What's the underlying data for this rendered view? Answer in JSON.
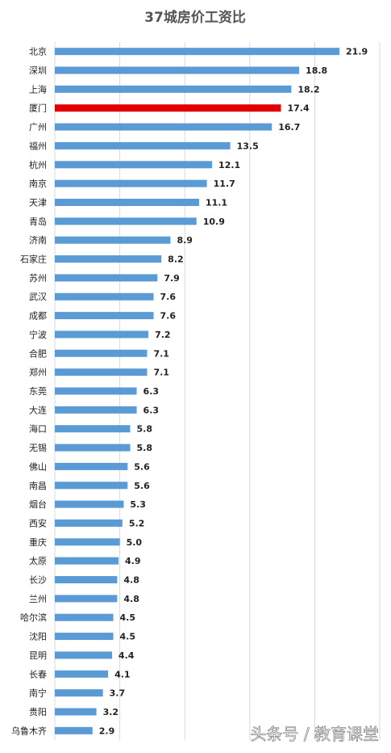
{
  "chart_data": {
    "type": "barh",
    "title": "37城房价工资比",
    "categories": [
      "北京",
      "深圳",
      "上海",
      "厦门",
      "广州",
      "福州",
      "杭州",
      "南京",
      "天津",
      "青岛",
      "济南",
      "石家庄",
      "苏州",
      "武汉",
      "成都",
      "宁波",
      "合肥",
      "郑州",
      "东莞",
      "大连",
      "海口",
      "无锡",
      "佛山",
      "南昌",
      "烟台",
      "西安",
      "重庆",
      "太原",
      "长沙",
      "兰州",
      "哈尔滨",
      "沈阳",
      "昆明",
      "长春",
      "南宁",
      "贵阳",
      "乌鲁木齐"
    ],
    "values": [
      21.9,
      18.8,
      18.2,
      17.4,
      16.7,
      13.5,
      12.1,
      11.7,
      11.1,
      10.9,
      8.9,
      8.2,
      7.9,
      7.6,
      7.6,
      7.2,
      7.1,
      7.1,
      6.3,
      6.3,
      5.8,
      5.8,
      5.6,
      5.6,
      5.3,
      5.2,
      5.0,
      4.9,
      4.8,
      4.8,
      4.5,
      4.5,
      4.4,
      4.1,
      3.7,
      3.2,
      2.9
    ],
    "value_labels": [
      "21.9",
      "18.8",
      "18.2",
      "17.4",
      "16.7",
      "13.5",
      "12.1",
      "11.7",
      "11.1",
      "10.9",
      "8.9",
      "8.2",
      "7.9",
      "7.6",
      "7.6",
      "7.2",
      "7.1",
      "7.1",
      "6.3",
      "6.3",
      "5.8",
      "5.8",
      "5.6",
      "5.6",
      "5.3",
      "5.2",
      "5.0",
      "4.9",
      "4.8",
      "4.8",
      "4.5",
      "4.5",
      "4.4",
      "4.1",
      "3.7",
      "3.2",
      "2.9"
    ],
    "colors": [
      "#5b9bd5",
      "#5b9bd5",
      "#5b9bd5",
      "#e00000",
      "#5b9bd5",
      "#5b9bd5",
      "#5b9bd5",
      "#5b9bd5",
      "#5b9bd5",
      "#5b9bd5",
      "#5b9bd5",
      "#5b9bd5",
      "#5b9bd5",
      "#5b9bd5",
      "#5b9bd5",
      "#5b9bd5",
      "#5b9bd5",
      "#5b9bd5",
      "#5b9bd5",
      "#5b9bd5",
      "#5b9bd5",
      "#5b9bd5",
      "#5b9bd5",
      "#5b9bd5",
      "#5b9bd5",
      "#5b9bd5",
      "#5b9bd5",
      "#5b9bd5",
      "#5b9bd5",
      "#5b9bd5",
      "#5b9bd5",
      "#5b9bd5",
      "#5b9bd5",
      "#5b9bd5",
      "#5b9bd5",
      "#5b9bd5",
      "#5b9bd5"
    ],
    "xlim": [
      0,
      25
    ],
    "xticks": [
      0,
      5,
      10,
      15,
      20,
      25
    ],
    "grid": true,
    "watermark": "头条号 / 教育课堂"
  }
}
